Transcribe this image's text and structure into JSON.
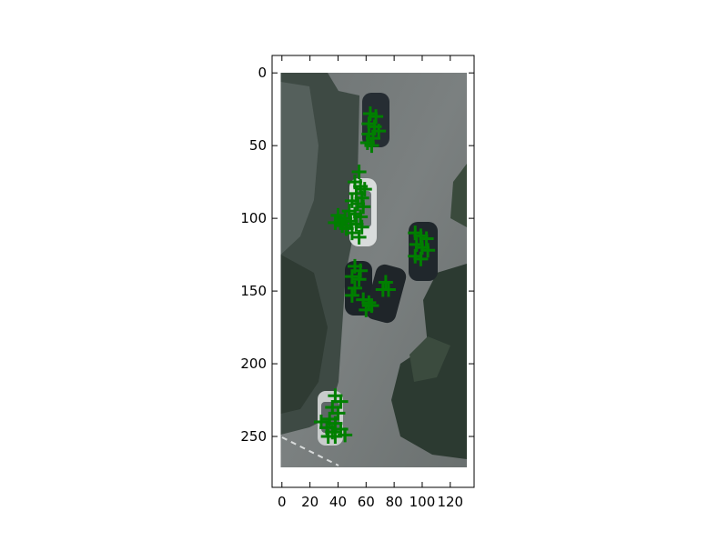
{
  "chart_data": {
    "type": "scatter",
    "background": "aerial-photo",
    "image_extent": {
      "x": [
        0,
        130
      ],
      "y": [
        273,
        0
      ]
    },
    "xlim": [
      -7,
      137
    ],
    "ylim": [
      285,
      -12
    ],
    "x_ticks": [
      0,
      20,
      40,
      60,
      80,
      100,
      120
    ],
    "y_ticks": [
      0,
      50,
      100,
      150,
      200,
      250
    ],
    "x_tick_labels": [
      "0",
      "20",
      "40",
      "60",
      "80",
      "100",
      "120"
    ],
    "y_tick_labels": [
      "0",
      "50",
      "100",
      "150",
      "200",
      "250"
    ],
    "grid": false,
    "marker": "plus",
    "marker_color": "#007f00",
    "series": [
      {
        "points": [
          [
            63,
            28
          ],
          [
            67,
            30
          ],
          [
            62,
            35
          ],
          [
            66,
            37
          ],
          [
            69,
            40
          ],
          [
            62,
            42
          ],
          [
            65,
            45
          ],
          [
            61,
            48
          ],
          [
            64,
            50
          ],
          [
            55,
            68
          ],
          [
            52,
            75
          ],
          [
            56,
            78
          ],
          [
            59,
            80
          ],
          [
            53,
            83
          ],
          [
            57,
            86
          ],
          [
            50,
            88
          ],
          [
            54,
            90
          ],
          [
            58,
            92
          ],
          [
            48,
            95
          ],
          [
            52,
            97
          ],
          [
            56,
            99
          ],
          [
            45,
            100
          ],
          [
            49,
            102
          ],
          [
            53,
            104
          ],
          [
            57,
            106
          ],
          [
            42,
            103
          ],
          [
            46,
            107
          ],
          [
            50,
            110
          ],
          [
            55,
            113
          ],
          [
            40,
            98
          ],
          [
            38,
            103
          ],
          [
            43,
            105
          ],
          [
            95,
            110
          ],
          [
            99,
            112
          ],
          [
            103,
            114
          ],
          [
            96,
            118
          ],
          [
            100,
            120
          ],
          [
            104,
            122
          ],
          [
            95,
            126
          ],
          [
            99,
            128
          ],
          [
            52,
            133
          ],
          [
            56,
            136
          ],
          [
            50,
            140
          ],
          [
            55,
            142
          ],
          [
            52,
            148
          ],
          [
            50,
            153
          ],
          [
            74,
            144
          ],
          [
            72,
            149
          ],
          [
            76,
            149
          ],
          [
            58,
            156
          ],
          [
            62,
            158
          ],
          [
            60,
            163
          ],
          [
            64,
            160
          ],
          [
            38,
            222
          ],
          [
            42,
            226
          ],
          [
            36,
            230
          ],
          [
            40,
            234
          ],
          [
            34,
            238
          ],
          [
            38,
            241
          ],
          [
            28,
            240
          ],
          [
            32,
            244
          ],
          [
            36,
            247
          ],
          [
            42,
            245
          ],
          [
            45,
            249
          ],
          [
            33,
            250
          ],
          [
            38,
            250
          ]
        ]
      }
    ]
  }
}
